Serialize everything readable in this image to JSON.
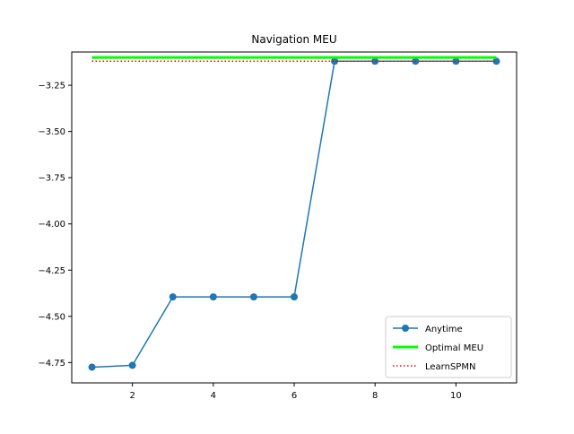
{
  "chart_data": {
    "type": "line",
    "title": "Navigation MEU",
    "xlabel": "",
    "ylabel": "",
    "xlim": [
      0.5,
      11.5
    ],
    "ylim": [
      -4.86,
      -3.07
    ],
    "xticks": [
      2,
      4,
      6,
      8,
      10
    ],
    "yticks": [
      -3.25,
      -3.5,
      -3.75,
      -4.0,
      -4.25,
      -4.5,
      -4.75
    ],
    "xtick_labels": [
      "2",
      "4",
      "6",
      "8",
      "10"
    ],
    "ytick_labels": [
      "−3.25",
      "−3.50",
      "−3.75",
      "−4.00",
      "−4.25",
      "−4.50",
      "−4.75"
    ],
    "grid": false,
    "legend_position": "lower right",
    "series": [
      {
        "name": "Anytime",
        "style": "line-marker",
        "color": "#1f77b4",
        "x": [
          1,
          2,
          3,
          4,
          5,
          6,
          7,
          8,
          9,
          10,
          11
        ],
        "y": [
          -4.775,
          -4.765,
          -4.395,
          -4.395,
          -4.395,
          -4.395,
          -3.12,
          -3.12,
          -3.12,
          -3.12,
          -3.12
        ]
      },
      {
        "name": "Optimal MEU",
        "style": "thick-line",
        "color": "#00ff00",
        "x": [
          1,
          11
        ],
        "y": [
          -3.1,
          -3.1
        ]
      },
      {
        "name": "LearnSPMN",
        "style": "dotted-line",
        "color": "#ff0000",
        "x": [
          1,
          11
        ],
        "y": [
          -3.12,
          -3.12
        ]
      }
    ]
  }
}
